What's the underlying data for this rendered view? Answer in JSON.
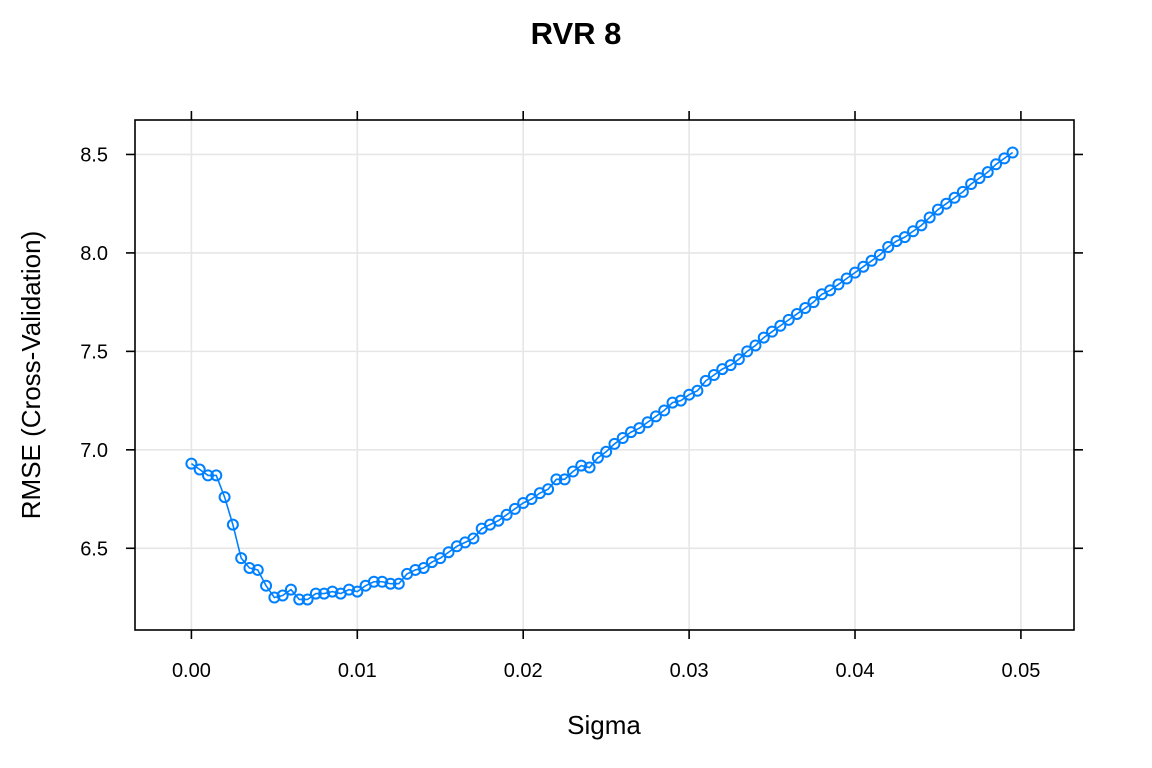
{
  "chart_data": {
    "type": "line",
    "title": "RVR 8",
    "xlabel": "Sigma",
    "ylabel": "RMSE (Cross-Validation)",
    "xlim": [
      -0.0034,
      0.0532
    ],
    "ylim": [
      6.085,
      8.675
    ],
    "xticks": [
      0.0,
      0.01,
      0.02,
      0.03,
      0.04,
      0.05
    ],
    "xtick_labels": [
      "0.00",
      "0.01",
      "0.02",
      "0.03",
      "0.04",
      "0.05"
    ],
    "yticks": [
      6.5,
      7.0,
      7.5,
      8.0,
      8.5
    ],
    "ytick_labels": [
      "6.5",
      "7.0",
      "7.5",
      "8.0",
      "8.5"
    ],
    "grid": true,
    "series": [
      {
        "color": "#0080ff",
        "marker": "open-circle",
        "x": [
          0.0,
          0.0005,
          0.001,
          0.0015,
          0.002,
          0.0025,
          0.003,
          0.0035,
          0.004,
          0.0045,
          0.005,
          0.0055,
          0.006,
          0.0065,
          0.007,
          0.0075,
          0.008,
          0.0085,
          0.009,
          0.0095,
          0.01,
          0.0105,
          0.011,
          0.0115,
          0.012,
          0.0125,
          0.013,
          0.0135,
          0.014,
          0.0145,
          0.015,
          0.0155,
          0.016,
          0.0165,
          0.017,
          0.0175,
          0.018,
          0.0185,
          0.019,
          0.0195,
          0.02,
          0.0205,
          0.021,
          0.0215,
          0.022,
          0.0225,
          0.023,
          0.0235,
          0.024,
          0.0245,
          0.025,
          0.0255,
          0.026,
          0.0265,
          0.027,
          0.0275,
          0.028,
          0.0285,
          0.029,
          0.0295,
          0.03,
          0.0305,
          0.031,
          0.0315,
          0.032,
          0.0325,
          0.033,
          0.0335,
          0.034,
          0.0345,
          0.035,
          0.0355,
          0.036,
          0.0365,
          0.037,
          0.0375,
          0.038,
          0.0385,
          0.039,
          0.0395,
          0.04,
          0.0405,
          0.041,
          0.0415,
          0.042,
          0.0425,
          0.043,
          0.0435,
          0.044,
          0.0445,
          0.045,
          0.0455,
          0.046,
          0.0465,
          0.047,
          0.0475,
          0.048,
          0.0485,
          0.049,
          0.0495
        ],
        "y": [
          6.93,
          6.9,
          6.87,
          6.87,
          6.76,
          6.62,
          6.45,
          6.4,
          6.39,
          6.31,
          6.25,
          6.26,
          6.29,
          6.24,
          6.24,
          6.27,
          6.27,
          6.28,
          6.27,
          6.29,
          6.28,
          6.31,
          6.33,
          6.33,
          6.32,
          6.32,
          6.37,
          6.39,
          6.4,
          6.43,
          6.45,
          6.48,
          6.51,
          6.53,
          6.55,
          6.6,
          6.62,
          6.64,
          6.67,
          6.7,
          6.73,
          6.75,
          6.78,
          6.8,
          6.85,
          6.85,
          6.89,
          6.92,
          6.91,
          6.96,
          6.99,
          7.03,
          7.06,
          7.09,
          7.11,
          7.14,
          7.17,
          7.2,
          7.24,
          7.25,
          7.28,
          7.3,
          7.35,
          7.38,
          7.41,
          7.43,
          7.46,
          7.5,
          7.53,
          7.57,
          7.6,
          7.63,
          7.66,
          7.69,
          7.72,
          7.75,
          7.79,
          7.81,
          7.84,
          7.87,
          7.9,
          7.93,
          7.96,
          7.99,
          8.03,
          8.06,
          8.08,
          8.11,
          8.14,
          8.18,
          8.22,
          8.25,
          8.28,
          8.31,
          8.35,
          8.38,
          8.41,
          8.45,
          8.48,
          8.51
        ]
      }
    ]
  }
}
